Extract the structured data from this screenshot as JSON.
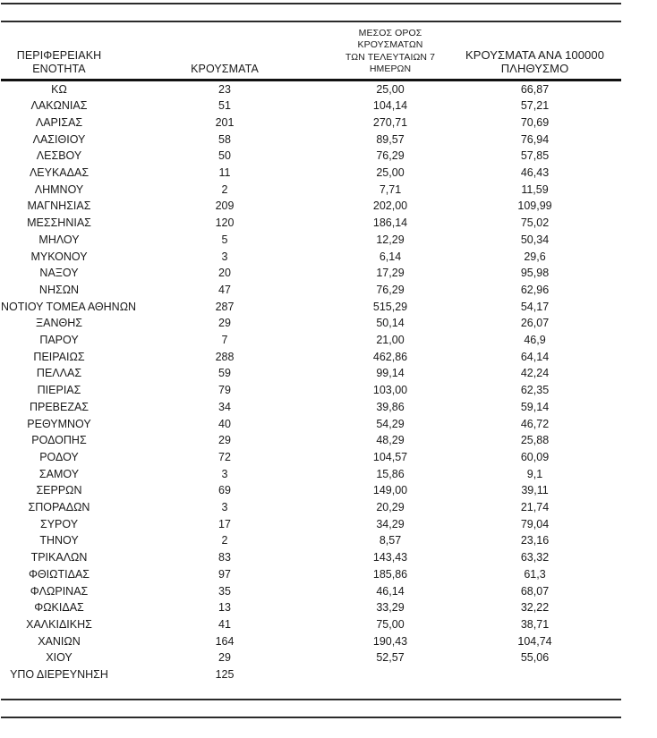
{
  "table": {
    "headers": [
      {
        "label": "ΠΕΡΙΦΕΡΕΙΑΚΗ ΕΝΟΤΗΤΑ"
      },
      {
        "label": "ΚΡΟΥΣΜΑΤΑ"
      },
      {
        "label": "ΜΕΣΟΣ ΟΡΟΣ ΚΡΟΥΣΜΑΤΩΝ\nΤΩΝ ΤΕΛΕΥΤΑΙΩΝ 7 ΗΜΕΡΩΝ"
      },
      {
        "label": "ΚΡΟΥΣΜΑΤΑ ΑΝΑ 100000\nΠΛΗΘΥΣΜΟ"
      }
    ],
    "rows": [
      [
        "ΚΩ",
        "23",
        "25,00",
        "66,87"
      ],
      [
        "ΛΑΚΩΝΙΑΣ",
        "51",
        "104,14",
        "57,21"
      ],
      [
        "ΛΑΡΙΣΑΣ",
        "201",
        "270,71",
        "70,69"
      ],
      [
        "ΛΑΣΙΘΙΟΥ",
        "58",
        "89,57",
        "76,94"
      ],
      [
        "ΛΕΣΒΟΥ",
        "50",
        "76,29",
        "57,85"
      ],
      [
        "ΛΕΥΚΑΔΑΣ",
        "11",
        "25,00",
        "46,43"
      ],
      [
        "ΛΗΜΝΟΥ",
        "2",
        "7,71",
        "11,59"
      ],
      [
        "ΜΑΓΝΗΣΙΑΣ",
        "209",
        "202,00",
        "109,99"
      ],
      [
        "ΜΕΣΣΗΝΙΑΣ",
        "120",
        "186,14",
        "75,02"
      ],
      [
        "ΜΗΛΟΥ",
        "5",
        "12,29",
        "50,34"
      ],
      [
        "ΜΥΚΟΝΟΥ",
        "3",
        "6,14",
        "29,6"
      ],
      [
        "ΝΑΞΟΥ",
        "20",
        "17,29",
        "95,98"
      ],
      [
        "ΝΗΣΩΝ",
        "47",
        "76,29",
        "62,96"
      ],
      [
        "ΝΟΤΙΟΥ ΤΟΜΕΑ ΑΘΗΝΩΝ",
        "287",
        "515,29",
        "54,17"
      ],
      [
        "ΞΑΝΘΗΣ",
        "29",
        "50,14",
        "26,07"
      ],
      [
        "ΠΑΡΟΥ",
        "7",
        "21,00",
        "46,9"
      ],
      [
        "ΠΕΙΡΑΙΩΣ",
        "288",
        "462,86",
        "64,14"
      ],
      [
        "ΠΕΛΛΑΣ",
        "59",
        "99,14",
        "42,24"
      ],
      [
        "ΠΙΕΡΙΑΣ",
        "79",
        "103,00",
        "62,35"
      ],
      [
        "ΠΡΕΒΕΖΑΣ",
        "34",
        "39,86",
        "59,14"
      ],
      [
        "ΡΕΘΥΜΝΟΥ",
        "40",
        "54,29",
        "46,72"
      ],
      [
        "ΡΟΔΟΠΗΣ",
        "29",
        "48,29",
        "25,88"
      ],
      [
        "ΡΟΔΟΥ",
        "72",
        "104,57",
        "60,09"
      ],
      [
        "ΣΑΜΟΥ",
        "3",
        "15,86",
        "9,1"
      ],
      [
        "ΣΕΡΡΩΝ",
        "69",
        "149,00",
        "39,11"
      ],
      [
        "ΣΠΟΡΑΔΩΝ",
        "3",
        "20,29",
        "21,74"
      ],
      [
        "ΣΥΡΟΥ",
        "17",
        "34,29",
        "79,04"
      ],
      [
        "ΤΗΝΟΥ",
        "2",
        "8,57",
        "23,16"
      ],
      [
        "ΤΡΙΚΑΛΩΝ",
        "83",
        "143,43",
        "63,32"
      ],
      [
        "ΦΘΙΩΤΙΔΑΣ",
        "97",
        "185,86",
        "61,3"
      ],
      [
        "ΦΛΩΡΙΝΑΣ",
        "35",
        "46,14",
        "68,07"
      ],
      [
        "ΦΩΚΙΔΑΣ",
        "13",
        "33,29",
        "32,22"
      ],
      [
        "ΧΑΛΚΙΔΙΚΗΣ",
        "41",
        "75,00",
        "38,71"
      ],
      [
        "ΧΑΝΙΩΝ",
        "164",
        "190,43",
        "104,74"
      ],
      [
        "ΧΙΟΥ",
        "29",
        "52,57",
        "55,06"
      ],
      [
        "ΥΠΟ ΔΙΕΡΕΥΝΗΣΗ",
        "125",
        "",
        ""
      ]
    ]
  },
  "colors": {
    "text": "#1a1a1a",
    "rule": "#2b2b2b",
    "header_underline": "#111111",
    "background": "#ffffff"
  }
}
